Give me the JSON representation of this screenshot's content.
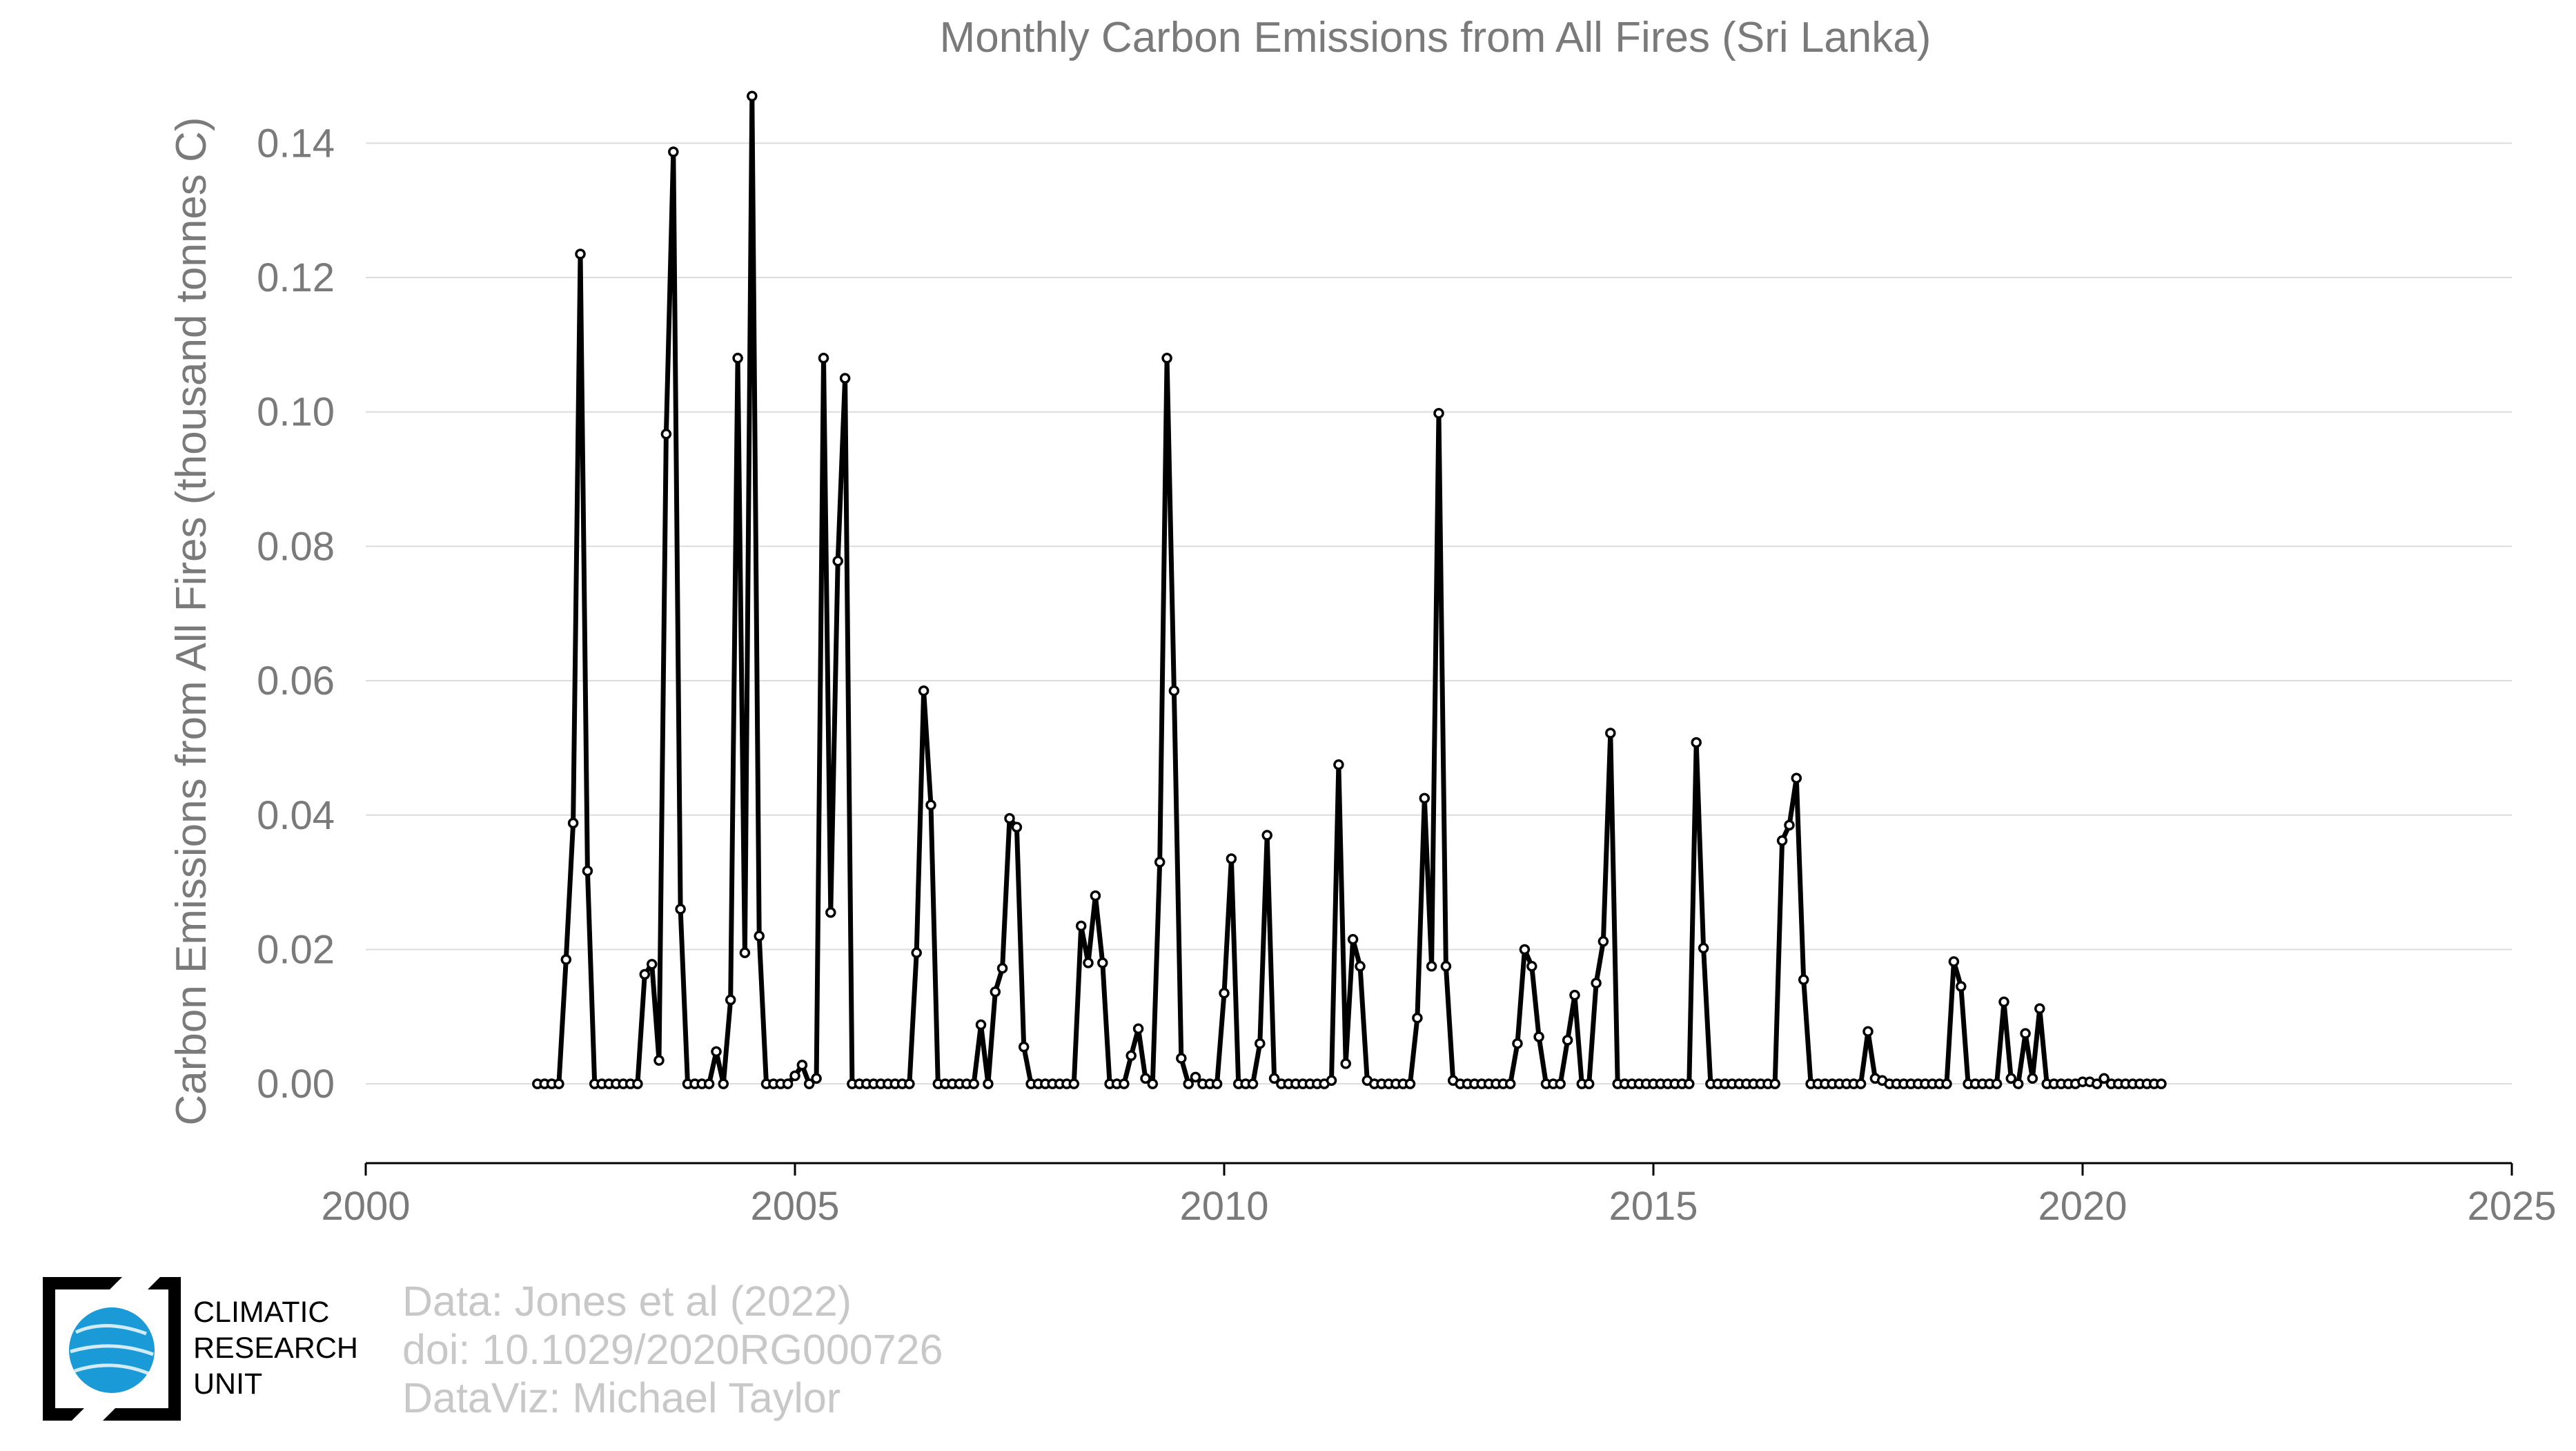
{
  "chart_data": {
    "type": "line",
    "title": "Monthly Carbon Emissions from All Fires (Sri Lanka)",
    "xlabel": "",
    "ylabel": "Carbon Emissions from All Fires (thousand tonnes C)",
    "xlim": [
      2000,
      2025
    ],
    "ylim": [
      -0.0118,
      0.15
    ],
    "x_ticks": [
      2000,
      2005,
      2010,
      2015,
      2020,
      2025
    ],
    "y_ticks": [
      "0.00",
      "0.02",
      "0.04",
      "0.06",
      "0.08",
      "0.10",
      "0.12",
      "0.14"
    ],
    "grid": "horizontal",
    "x_start": "2002-01",
    "x_step": "1 month",
    "series": [
      {
        "name": "",
        "color": "#000000",
        "values": [
          0,
          0,
          0,
          0,
          0.0185,
          0.0388,
          0.1235,
          0.0317,
          0,
          0,
          0,
          0,
          0,
          0,
          0,
          0.0163,
          0.0178,
          0.0035,
          0.0967,
          0.1387,
          0.026,
          0,
          0,
          0,
          0,
          0.0048,
          0,
          0.0125,
          0.108,
          0.0195,
          0.147,
          0.022,
          0,
          0,
          0,
          0,
          0.0012,
          0.0028,
          0,
          0.0008,
          0.108,
          0.0255,
          0.0778,
          0.105,
          0,
          0,
          0,
          0,
          0,
          0,
          0,
          0,
          0,
          0.0195,
          0.0585,
          0.0415,
          0,
          0,
          0,
          0,
          0,
          0,
          0.0088,
          0,
          0.0137,
          0.0172,
          0.0395,
          0.0382,
          0.0055,
          0,
          0,
          0,
          0,
          0,
          0,
          0,
          0.0235,
          0.018,
          0.028,
          0.018,
          0,
          0,
          0,
          0.0042,
          0.0082,
          0.0008,
          0,
          0.033,
          0.108,
          0.0585,
          0.0038,
          0,
          0.001,
          0,
          0,
          0,
          0.0135,
          0.0335,
          0,
          0,
          0,
          0.006,
          0.037,
          0.0008,
          0,
          0,
          0,
          0,
          0,
          0,
          0,
          0.0005,
          0.0475,
          0.003,
          0.0215,
          0.0175,
          0.0005,
          0,
          0,
          0,
          0,
          0,
          0,
          0.0098,
          0.0425,
          0.0175,
          0.0998,
          0.0175,
          0.0005,
          0,
          0,
          0,
          0,
          0,
          0,
          0,
          0,
          0.006,
          0.02,
          0.0175,
          0.007,
          0,
          0,
          0,
          0.0065,
          0.0132,
          0,
          0,
          0.015,
          0.0212,
          0.0522,
          0,
          0,
          0,
          0,
          0,
          0,
          0,
          0,
          0,
          0,
          0,
          0.0508,
          0.0202,
          0,
          0,
          0,
          0,
          0,
          0,
          0,
          0,
          0,
          0,
          0.0362,
          0.0385,
          0.0455,
          0.0155,
          0,
          0,
          0,
          0,
          0,
          0,
          0,
          0,
          0.0078,
          0.0008,
          0.0005,
          0,
          0,
          0,
          0,
          0,
          0,
          0,
          0,
          0,
          0.0182,
          0.0145,
          0,
          0,
          0,
          0,
          0,
          0.0122,
          0.0008,
          0,
          0.0075,
          0.0008,
          0.0112,
          0,
          0,
          0,
          0,
          0,
          0.0003,
          0.0003,
          0,
          0.0008,
          0,
          0,
          0,
          0,
          0,
          0,
          0,
          0
        ]
      }
    ]
  },
  "credits": {
    "line1": "Data: Jones et al (2022)",
    "line2": "doi: 10.1029/2020RG000726",
    "line3": "DataViz: Michael Taylor"
  },
  "logo": {
    "line1": "CLIMATIC",
    "line2": "RESEARCH",
    "line3": "UNIT",
    "accent_color": "#1a9ad6"
  }
}
